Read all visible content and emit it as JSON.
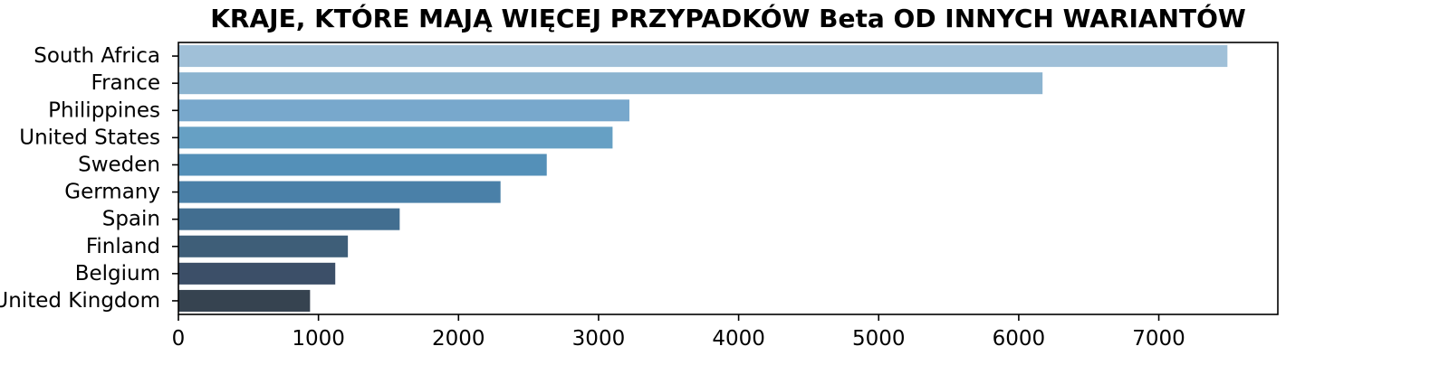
{
  "chart_data": {
    "type": "bar",
    "orientation": "horizontal",
    "title": "KRAJE, KTÓRE MAJĄ WIĘCEJ PRZYPADKÓW Beta OD INNYCH WARIANTÓW",
    "xlabel": "",
    "ylabel": "",
    "categories": [
      "South Africa",
      "France",
      "Philippines",
      "United States",
      "Sweden",
      "Germany",
      "Spain",
      "Finland",
      "Belgium",
      "United Kingdom"
    ],
    "values": [
      7490,
      6170,
      3220,
      3100,
      2630,
      2300,
      1580,
      1210,
      1120,
      940
    ],
    "colors": [
      "#a0c0d8",
      "#8cb4d0",
      "#78a8cc",
      "#66a0c4",
      "#5490b8",
      "#4a80a8",
      "#426e90",
      "#3e5e78",
      "#3c4f68",
      "#364350"
    ],
    "xlim": [
      0,
      7850
    ],
    "xticks": [
      0,
      1000,
      2000,
      3000,
      4000,
      5000,
      6000,
      7000
    ],
    "grid": false,
    "legend": "none"
  }
}
